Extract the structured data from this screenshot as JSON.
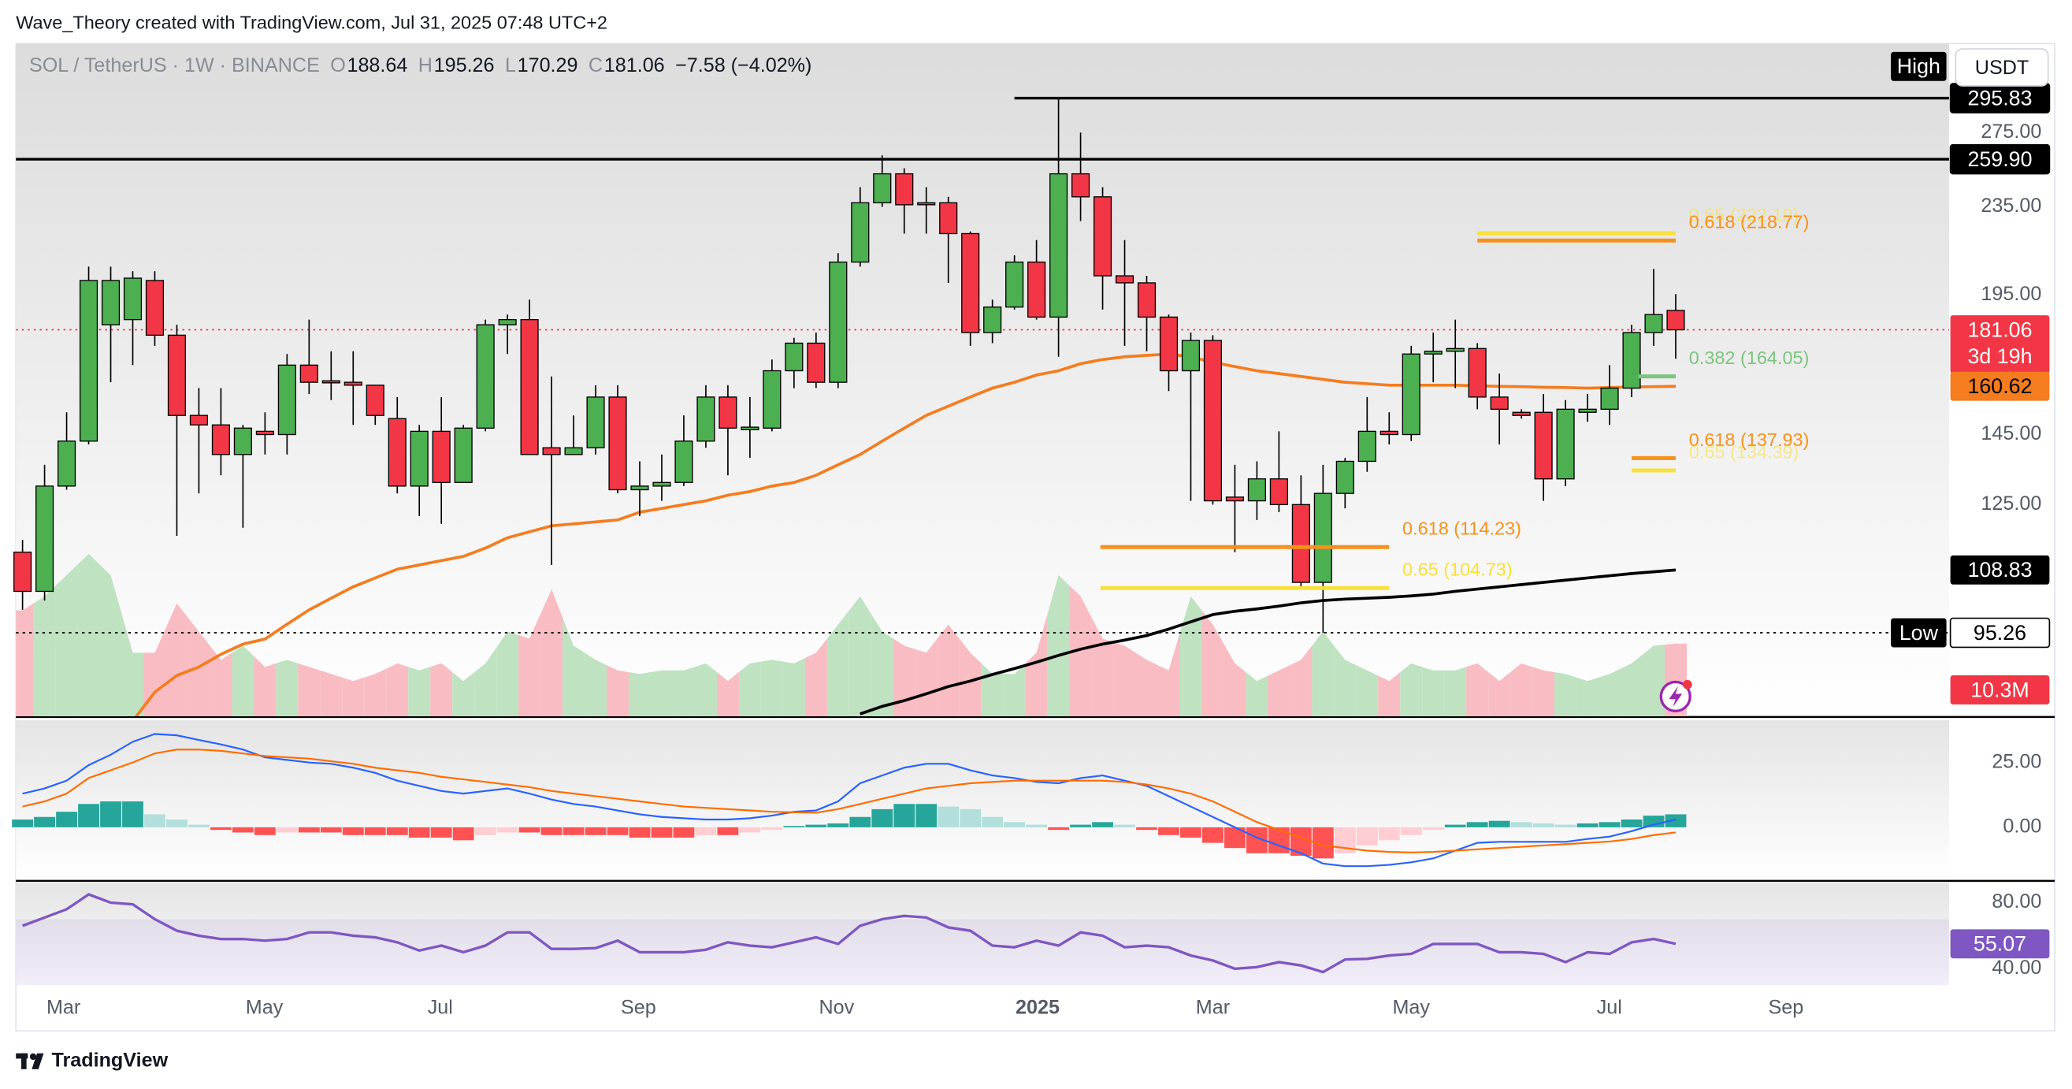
{
  "header": {
    "credit": "Wave_Theory created with TradingView.com, Jul 31, 2025 07:48 UTC+2"
  },
  "footer": {
    "brand": "TradingView"
  },
  "chart_data": {
    "type": "candlestick",
    "symbol": "SOL / TetherUS · 1W · BINANCE",
    "ohlc_keys": [
      "O",
      "H",
      "L",
      "C"
    ],
    "change": "−7.58 (−4.02%)",
    "currency": "USDT",
    "countdown": "3d 19h",
    "up_color": "#4caf50",
    "down_color": "#f23645",
    "log_scale": true,
    "grid": false,
    "ylim": [
      79.8,
      332.1
    ],
    "yticks": [
      {
        "value": 275,
        "label": "275.00"
      },
      {
        "value": 235,
        "label": "235.00"
      },
      {
        "value": 195,
        "label": "195.00"
      },
      {
        "value": 145,
        "label": "145.00"
      },
      {
        "value": 125,
        "label": "125.00"
      }
    ],
    "xlim": [
      -0.3,
      87.4
    ],
    "xticks": [
      {
        "value": 1.86,
        "label": "Mar"
      },
      {
        "value": 10.97,
        "label": "May"
      },
      {
        "value": 18.95,
        "label": "Jul"
      },
      {
        "value": 27.94,
        "label": "Sep"
      },
      {
        "value": 36.93,
        "label": "Nov"
      },
      {
        "value": 46.05,
        "label": "2025"
      },
      {
        "value": 54.0,
        "label": "Mar"
      },
      {
        "value": 63.0,
        "label": "May"
      },
      {
        "value": 71.99,
        "label": "Jul"
      },
      {
        "value": 80.0,
        "label": "Sep"
      }
    ],
    "open": [
      113,
      104,
      130,
      143,
      183,
      185,
      201,
      179,
      151,
      148,
      139,
      146,
      145,
      168,
      162.5,
      162,
      161,
      150,
      130,
      146,
      131,
      147,
      183,
      185,
      141,
      139,
      141,
      157,
      129,
      130,
      131,
      143,
      157,
      146.5,
      147,
      166,
      176,
      162,
      209,
      237,
      252,
      237,
      237,
      222,
      180,
      190,
      209,
      186,
      252,
      240,
      203,
      200,
      186,
      166,
      177,
      127,
      126,
      132,
      125,
      106,
      128,
      137,
      146,
      145,
      172,
      173,
      174,
      157,
      152,
      152,
      132,
      152,
      153,
      160,
      180,
      188.64
    ],
    "high": [
      116,
      136,
      152,
      207,
      207,
      205,
      205,
      183,
      160,
      160,
      148,
      152,
      172,
      185,
      173,
      173,
      161,
      157,
      148,
      157,
      148,
      185,
      187,
      193,
      164,
      151,
      161,
      161,
      137,
      139,
      151,
      161,
      161,
      157,
      170,
      178,
      180,
      213,
      245,
      262,
      255,
      245,
      240,
      223,
      193,
      212,
      219,
      295.83,
      275,
      245,
      219,
      203,
      187,
      180,
      179,
      136,
      137,
      146,
      133,
      136,
      138,
      157,
      152,
      175,
      180,
      185,
      176,
      165,
      153,
      158,
      156,
      158,
      168,
      183,
      206,
      195.26
    ],
    "low": [
      100,
      102,
      129,
      142,
      162,
      168,
      175,
      117,
      128,
      133,
      119,
      139,
      139,
      158,
      156,
      148,
      148,
      128,
      122,
      120,
      133,
      146,
      172,
      139,
      110,
      139,
      139,
      128,
      122,
      126,
      130,
      141,
      133,
      138,
      146,
      160,
      160,
      160,
      207,
      235,
      222,
      222,
      200,
      175,
      176,
      189,
      185,
      171,
      228,
      189,
      175,
      173,
      159,
      126,
      125,
      113,
      121,
      123,
      105,
      95.26,
      124,
      134,
      142,
      143,
      162,
      160,
      153,
      142,
      150,
      126,
      130,
      149,
      148,
      157,
      175,
      170.29
    ],
    "close": [
      104,
      130,
      143,
      201,
      201,
      202,
      179,
      151,
      148,
      139,
      147,
      145,
      168,
      162,
      161.8,
      161,
      151,
      130,
      146,
      131,
      147,
      183,
      185,
      139,
      139,
      141,
      157,
      129,
      130,
      131,
      143,
      157,
      147,
      147.3,
      166,
      176,
      162,
      209,
      237,
      252,
      236,
      236.5,
      222,
      180,
      190,
      209,
      186,
      252,
      240,
      203,
      200,
      186,
      166,
      177,
      126,
      126,
      132,
      125,
      106,
      128,
      137,
      146,
      145,
      172,
      173,
      174,
      157,
      153,
      151,
      132,
      153,
      153,
      160,
      180,
      187,
      181.06
    ],
    "volume": {
      "values": [
        15,
        17,
        20,
        23,
        20,
        9,
        9,
        16,
        12,
        8,
        10,
        7,
        8,
        7,
        6,
        5,
        6,
        7.5,
        6.5,
        7.5,
        5,
        7.5,
        12,
        11,
        18,
        10,
        8,
        6.5,
        6,
        6.5,
        6.5,
        7.5,
        5,
        7.5,
        8,
        7.5,
        9,
        13,
        17,
        12,
        10,
        9,
        13,
        9,
        6,
        6,
        9,
        20,
        17,
        11,
        10,
        8,
        6.5,
        17,
        13,
        7.5,
        5,
        6.5,
        8,
        12,
        8,
        6.5,
        5,
        7.5,
        6.5,
        6.5,
        7.5,
        5,
        7.5,
        6.5,
        6,
        5,
        6,
        7.5,
        10,
        10.3
      ],
      "ylim": [
        0,
        33.7
      ],
      "last_label": "10.3M",
      "up_color": "#bfe2c1",
      "down_color": "#f8bcc2",
      "tag_color": "#f23645"
    },
    "moving_averages": [
      {
        "color": "#f57c1f",
        "values": [
          null,
          null,
          null,
          null,
          null,
          79,
          84,
          87,
          88.6,
          91,
          93,
          94,
          97,
          100,
          102.5,
          105,
          107,
          109,
          110,
          111,
          112,
          114,
          116.5,
          118,
          119.5,
          120,
          120.5,
          121,
          123,
          124,
          125,
          126,
          127.5,
          128.5,
          130,
          131,
          133,
          136,
          139,
          143,
          147,
          151,
          154,
          157,
          160,
          162,
          164.5,
          166,
          168.5,
          170,
          171,
          171.5,
          172,
          171,
          169,
          167.5,
          166,
          165,
          164,
          163,
          162,
          161.5,
          161,
          161,
          161,
          161,
          160.8,
          160.6,
          160.5,
          160.3,
          160.2,
          160,
          160.2,
          160.4,
          160.5,
          160.62
        ]
      },
      {
        "color": "#000000",
        "values": [
          null,
          null,
          null,
          null,
          null,
          null,
          null,
          null,
          null,
          null,
          null,
          null,
          null,
          null,
          null,
          null,
          null,
          null,
          null,
          null,
          null,
          null,
          null,
          null,
          null,
          null,
          null,
          null,
          null,
          null,
          null,
          null,
          null,
          null,
          null,
          null,
          null,
          null,
          80.2,
          81.5,
          82.5,
          83.7,
          85,
          86,
          87.2,
          88.3,
          89.5,
          90.8,
          92,
          93,
          93.8,
          94.7,
          96,
          97.5,
          99,
          99.7,
          100.2,
          100.8,
          101.5,
          102,
          102.3,
          102.5,
          102.7,
          103,
          103.4,
          104,
          104.5,
          105,
          105.5,
          106,
          106.5,
          107,
          107.5,
          108,
          108.4,
          108.83
        ]
      }
    ],
    "levels": [
      {
        "value": 295.83,
        "label": "295.83",
        "tag": "High",
        "style": "solid",
        "x_start": 45
      },
      {
        "value": 259.9,
        "label": "259.90",
        "style": "solid",
        "x_start": -0.3
      },
      {
        "value": 95.26,
        "label": "95.26",
        "tag": "Low",
        "style": "dotted",
        "x_start": -0.3
      }
    ],
    "fib_levels": [
      {
        "label": "0.65 (222.19)",
        "value": 222.19,
        "color": "#f7e13a",
        "x_start": 66,
        "x_end": 75,
        "faded": true
      },
      {
        "label": "0.618 (218.77)",
        "value": 218.77,
        "color": "#f5921e",
        "x_start": 66,
        "x_end": 75
      },
      {
        "label": "0.382 (164.05)",
        "value": 164.05,
        "color": "#7cc47f",
        "x_start": 73.3,
        "x_end": 75
      },
      {
        "label": "0.618 (137.93)",
        "value": 137.93,
        "color": "#f5921e",
        "x_start": 73,
        "x_end": 75
      },
      {
        "label": "0.65 (134.39)",
        "value": 134.39,
        "color": "#f7e13a",
        "x_start": 73,
        "x_end": 75,
        "faded": true
      },
      {
        "label": "0.618 (114.23)",
        "value": 114.23,
        "color": "#f5921e",
        "x_start": 48.9,
        "x_end": 62
      },
      {
        "label": "0.65 (104.73)",
        "value": 104.73,
        "color": "#f7e13a",
        "x_start": 48.9,
        "x_end": 62
      }
    ],
    "macd": {
      "macd": [
        13,
        15,
        18,
        24,
        28,
        33,
        36,
        35.5,
        33.7,
        32,
        30,
        27,
        26,
        25,
        24.5,
        23,
        21,
        18,
        16,
        14,
        13,
        14,
        15,
        13,
        10.7,
        9,
        8,
        6.5,
        5,
        4,
        3.5,
        3,
        3,
        3.5,
        4.5,
        6,
        6.5,
        10,
        17,
        20,
        23,
        24.5,
        24.5,
        22,
        20,
        19,
        17.5,
        17,
        19,
        20,
        18,
        16,
        12,
        8,
        4,
        0,
        -4,
        -7,
        -10,
        -14,
        -15,
        -15,
        -14.5,
        -13.5,
        -12,
        -9,
        -6,
        -5.6,
        -5.6,
        -5.6,
        -5.6,
        -4.5,
        -3.6,
        -1.5,
        1,
        3
      ],
      "signal": [
        8,
        10,
        13,
        19,
        22,
        25,
        28.5,
        30,
        30,
        29.5,
        28.5,
        27.5,
        27,
        26.5,
        25.5,
        24.5,
        23,
        22,
        21,
        19.5,
        18.5,
        17.5,
        16.5,
        15.5,
        14,
        13,
        12,
        11,
        10,
        9,
        8,
        7.5,
        7,
        6.5,
        6,
        5.8,
        5.6,
        7,
        9,
        11,
        13,
        15,
        16,
        17,
        17.5,
        18,
        18,
        18,
        18,
        18,
        17.5,
        16.5,
        15,
        13,
        10,
        6,
        2,
        -1,
        -4,
        -7,
        -8,
        -9,
        -9.5,
        -9.7,
        -9.5,
        -9,
        -8.5,
        -8,
        -7.5,
        -7,
        -6.5,
        -6,
        -5.5,
        -4.5,
        -3,
        -2
      ],
      "histogram": [
        3,
        4,
        6,
        9,
        10,
        10,
        5,
        3,
        1,
        -1,
        -2,
        -3,
        -2,
        -2,
        -2,
        -3,
        -3,
        -3,
        -4,
        -4,
        -5,
        -3,
        -2,
        -2,
        -3,
        -3,
        -3,
        -3,
        -4,
        -4,
        -4,
        -3,
        -3,
        -2,
        -1,
        0.5,
        1,
        1.5,
        4,
        7,
        9,
        9,
        8,
        7,
        4,
        2,
        1,
        -1,
        1,
        2,
        1,
        -1,
        -3,
        -4,
        -6,
        -8,
        -10,
        -10,
        -11,
        -12,
        -10,
        -7,
        -5,
        -3,
        -1,
        1,
        2,
        2.5,
        2,
        1.5,
        1,
        1.5,
        2,
        3,
        4.5,
        5
      ],
      "ylim": [
        -19.9,
        41.3
      ],
      "yticks": [
        {
          "value": 25,
          "label": "25.00"
        },
        {
          "value": 0,
          "label": "0.00"
        }
      ],
      "macd_color": "#2962ff",
      "signal_color": "#ff6d00"
    },
    "rsi": {
      "values": [
        66,
        71,
        76,
        85,
        80,
        79,
        70,
        63,
        60,
        58,
        58,
        57,
        58,
        62,
        62,
        60,
        59,
        56,
        51,
        54,
        50,
        54,
        62,
        62,
        52,
        52,
        52.5,
        57,
        50,
        50,
        50,
        51.5,
        56,
        54,
        53,
        56,
        59,
        55,
        66,
        70,
        72,
        71,
        65,
        63,
        54,
        53,
        57,
        54,
        62,
        60,
        53,
        54,
        53,
        48,
        45,
        40,
        41,
        44,
        42,
        38,
        45.6,
        46,
        48,
        49,
        55,
        55,
        55,
        50,
        50,
        49,
        44,
        50,
        49,
        56,
        58,
        55.07
      ],
      "ylim": [
        30.4,
        92
      ],
      "yticks": [
        {
          "value": 80,
          "label": "80.00"
        },
        {
          "value": 40,
          "label": "40.00"
        }
      ],
      "band": [
        30,
        70
      ],
      "color": "#7e57c2"
    }
  }
}
